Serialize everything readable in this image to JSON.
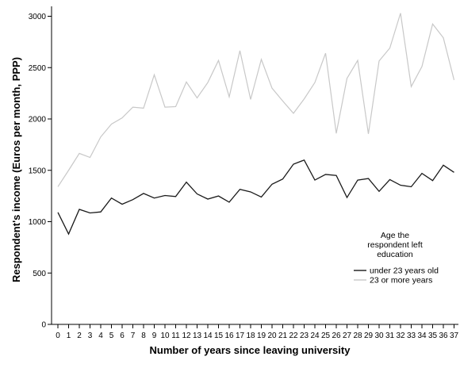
{
  "chart_data": {
    "type": "line",
    "xlabel": "Number of years since leaving university",
    "ylabel": "Respondent's income (Euros per month, PPP)",
    "categories": [
      "0",
      "1",
      "2",
      "3",
      "4",
      "5",
      "6",
      "7",
      "8",
      "9",
      "10",
      "11",
      "12",
      "13",
      "14",
      "15",
      "16",
      "17",
      "18",
      "19",
      "20",
      "21",
      "22",
      "23",
      "24",
      "25",
      "26",
      "27",
      "28",
      "29",
      "30",
      "31",
      "32",
      "33",
      "34",
      "35",
      "36",
      "37"
    ],
    "y_ticks": [
      0,
      500,
      1000,
      1500,
      2000,
      2500,
      3000
    ],
    "ylim": [
      0,
      3050
    ],
    "grid": false,
    "legend": {
      "title_lines": [
        "Age the",
        "respondent left",
        "education"
      ],
      "placement": "bottom-right"
    },
    "series": [
      {
        "name": "under 23 years old",
        "color": "#1a1a1a",
        "values": [
          1090,
          880,
          1120,
          1085,
          1095,
          1230,
          1170,
          1215,
          1275,
          1230,
          1255,
          1245,
          1385,
          1270,
          1220,
          1250,
          1190,
          1315,
          1290,
          1240,
          1365,
          1415,
          1560,
          1600,
          1405,
          1460,
          1450,
          1235,
          1405,
          1420,
          1295,
          1410,
          1355,
          1340,
          1470,
          1400,
          1550,
          1480
        ]
      },
      {
        "name": "23 or more years",
        "color": "#c8c8c8",
        "values": [
          1340,
          1500,
          1665,
          1625,
          1825,
          1950,
          2010,
          2115,
          2105,
          2430,
          2115,
          2120,
          2360,
          2205,
          2355,
          2570,
          2215,
          2665,
          2190,
          2580,
          2300,
          2175,
          2055,
          2195,
          2355,
          2640,
          1860,
          2395,
          2570,
          1855,
          2565,
          2690,
          3030,
          2315,
          2510,
          2925,
          2790,
          2380
        ]
      }
    ]
  }
}
